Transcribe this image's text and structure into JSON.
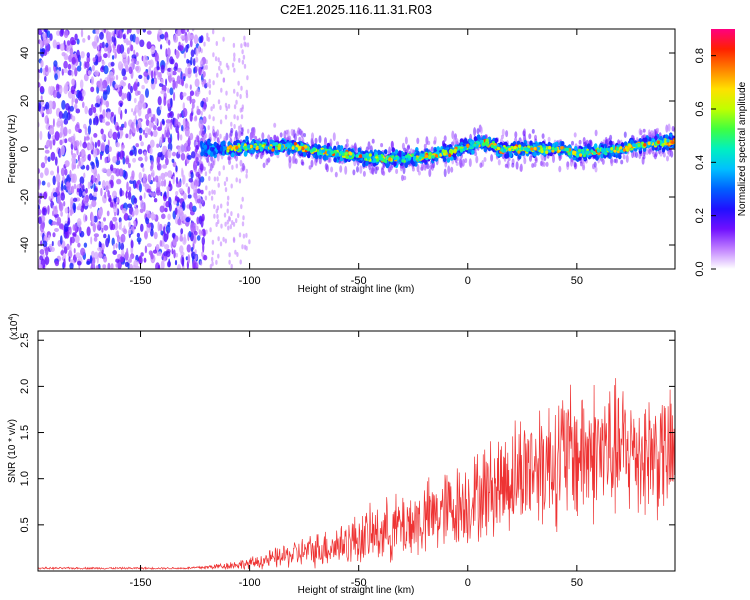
{
  "title": "C2E1.2025.116.11.31.R03",
  "chart_data": [
    {
      "type": "heatmap",
      "xlabel": "Height of straight line (km)",
      "ylabel": "Frequency (Hz)",
      "xlim": [
        -197,
        95
      ],
      "ylim": [
        -50,
        50
      ],
      "xticks": [
        -150,
        -100,
        -50,
        0,
        50
      ],
      "yticks": [
        -40,
        -20,
        0,
        20,
        40
      ],
      "ytick_labels": [
        "-40",
        "-20",
        "0",
        "20",
        "40"
      ],
      "colorbar": {
        "label": "Normalized spectral amplitude",
        "range": [
          0.0,
          0.9
        ],
        "ticks": [
          0.0,
          0.2,
          0.4,
          0.6,
          0.8
        ],
        "tick_labels": [
          "0.0",
          "0.2",
          "0.4",
          "0.6",
          "0.8"
        ],
        "colormap": [
          "#ffffff",
          "#c080ff",
          "#7010ff",
          "#2010ff",
          "#0060ff",
          "#00c0ff",
          "#00f0c0",
          "#40ff40",
          "#c0ff00",
          "#ffe000",
          "#ff8000",
          "#ff2000",
          "#ff0080"
        ]
      },
      "ridge": [
        {
          "x": -120,
          "y": 0
        },
        {
          "x": -110,
          "y": 0
        },
        {
          "x": -100,
          "y": 1
        },
        {
          "x": -80,
          "y": 1
        },
        {
          "x": -60,
          "y": -2
        },
        {
          "x": -50,
          "y": -3
        },
        {
          "x": -40,
          "y": -4
        },
        {
          "x": -30,
          "y": -4
        },
        {
          "x": -20,
          "y": -3
        },
        {
          "x": -10,
          "y": -2
        },
        {
          "x": 0,
          "y": 1
        },
        {
          "x": 8,
          "y": 3
        },
        {
          "x": 15,
          "y": 0
        },
        {
          "x": 30,
          "y": 0
        },
        {
          "x": 45,
          "y": 0
        },
        {
          "x": 50,
          "y": -2
        },
        {
          "x": 60,
          "y": -1
        },
        {
          "x": 70,
          "y": 0
        },
        {
          "x": 80,
          "y": 2
        },
        {
          "x": 95,
          "y": 3
        }
      ]
    },
    {
      "type": "line",
      "xlabel": "Height of straight line (km)",
      "ylabel": "SNR (10 * v/v)",
      "scale_label": "(x10",
      "scale_exp": "4",
      "scale_close": ")",
      "xlim": [
        -197,
        95
      ],
      "ylim": [
        0,
        2.6
      ],
      "xticks": [
        -150,
        -100,
        -50,
        0,
        50
      ],
      "yticks": [
        0.5,
        1.0,
        1.5,
        2.0,
        2.5
      ],
      "ytick_labels": [
        "0.5",
        "1.0",
        "1.5",
        "2.0",
        "2.5"
      ],
      "color": "#ee3333",
      "envelope": [
        {
          "x": -197,
          "mean": 0.03,
          "spread": 0.01
        },
        {
          "x": -130,
          "mean": 0.03,
          "spread": 0.01
        },
        {
          "x": -120,
          "mean": 0.04,
          "spread": 0.02
        },
        {
          "x": -100,
          "mean": 0.08,
          "spread": 0.06
        },
        {
          "x": -80,
          "mean": 0.18,
          "spread": 0.14
        },
        {
          "x": -60,
          "mean": 0.28,
          "spread": 0.22
        },
        {
          "x": -40,
          "mean": 0.42,
          "spread": 0.32
        },
        {
          "x": -20,
          "mean": 0.55,
          "spread": 0.4
        },
        {
          "x": 0,
          "mean": 0.75,
          "spread": 0.45
        },
        {
          "x": 15,
          "mean": 0.95,
          "spread": 0.55
        },
        {
          "x": 30,
          "mean": 1.15,
          "spread": 0.65
        },
        {
          "x": 45,
          "mean": 1.25,
          "spread": 0.75
        },
        {
          "x": 60,
          "mean": 1.3,
          "spread": 0.75
        },
        {
          "x": 75,
          "mean": 1.3,
          "spread": 0.7
        },
        {
          "x": 95,
          "mean": 1.25,
          "spread": 0.65
        }
      ]
    }
  ]
}
